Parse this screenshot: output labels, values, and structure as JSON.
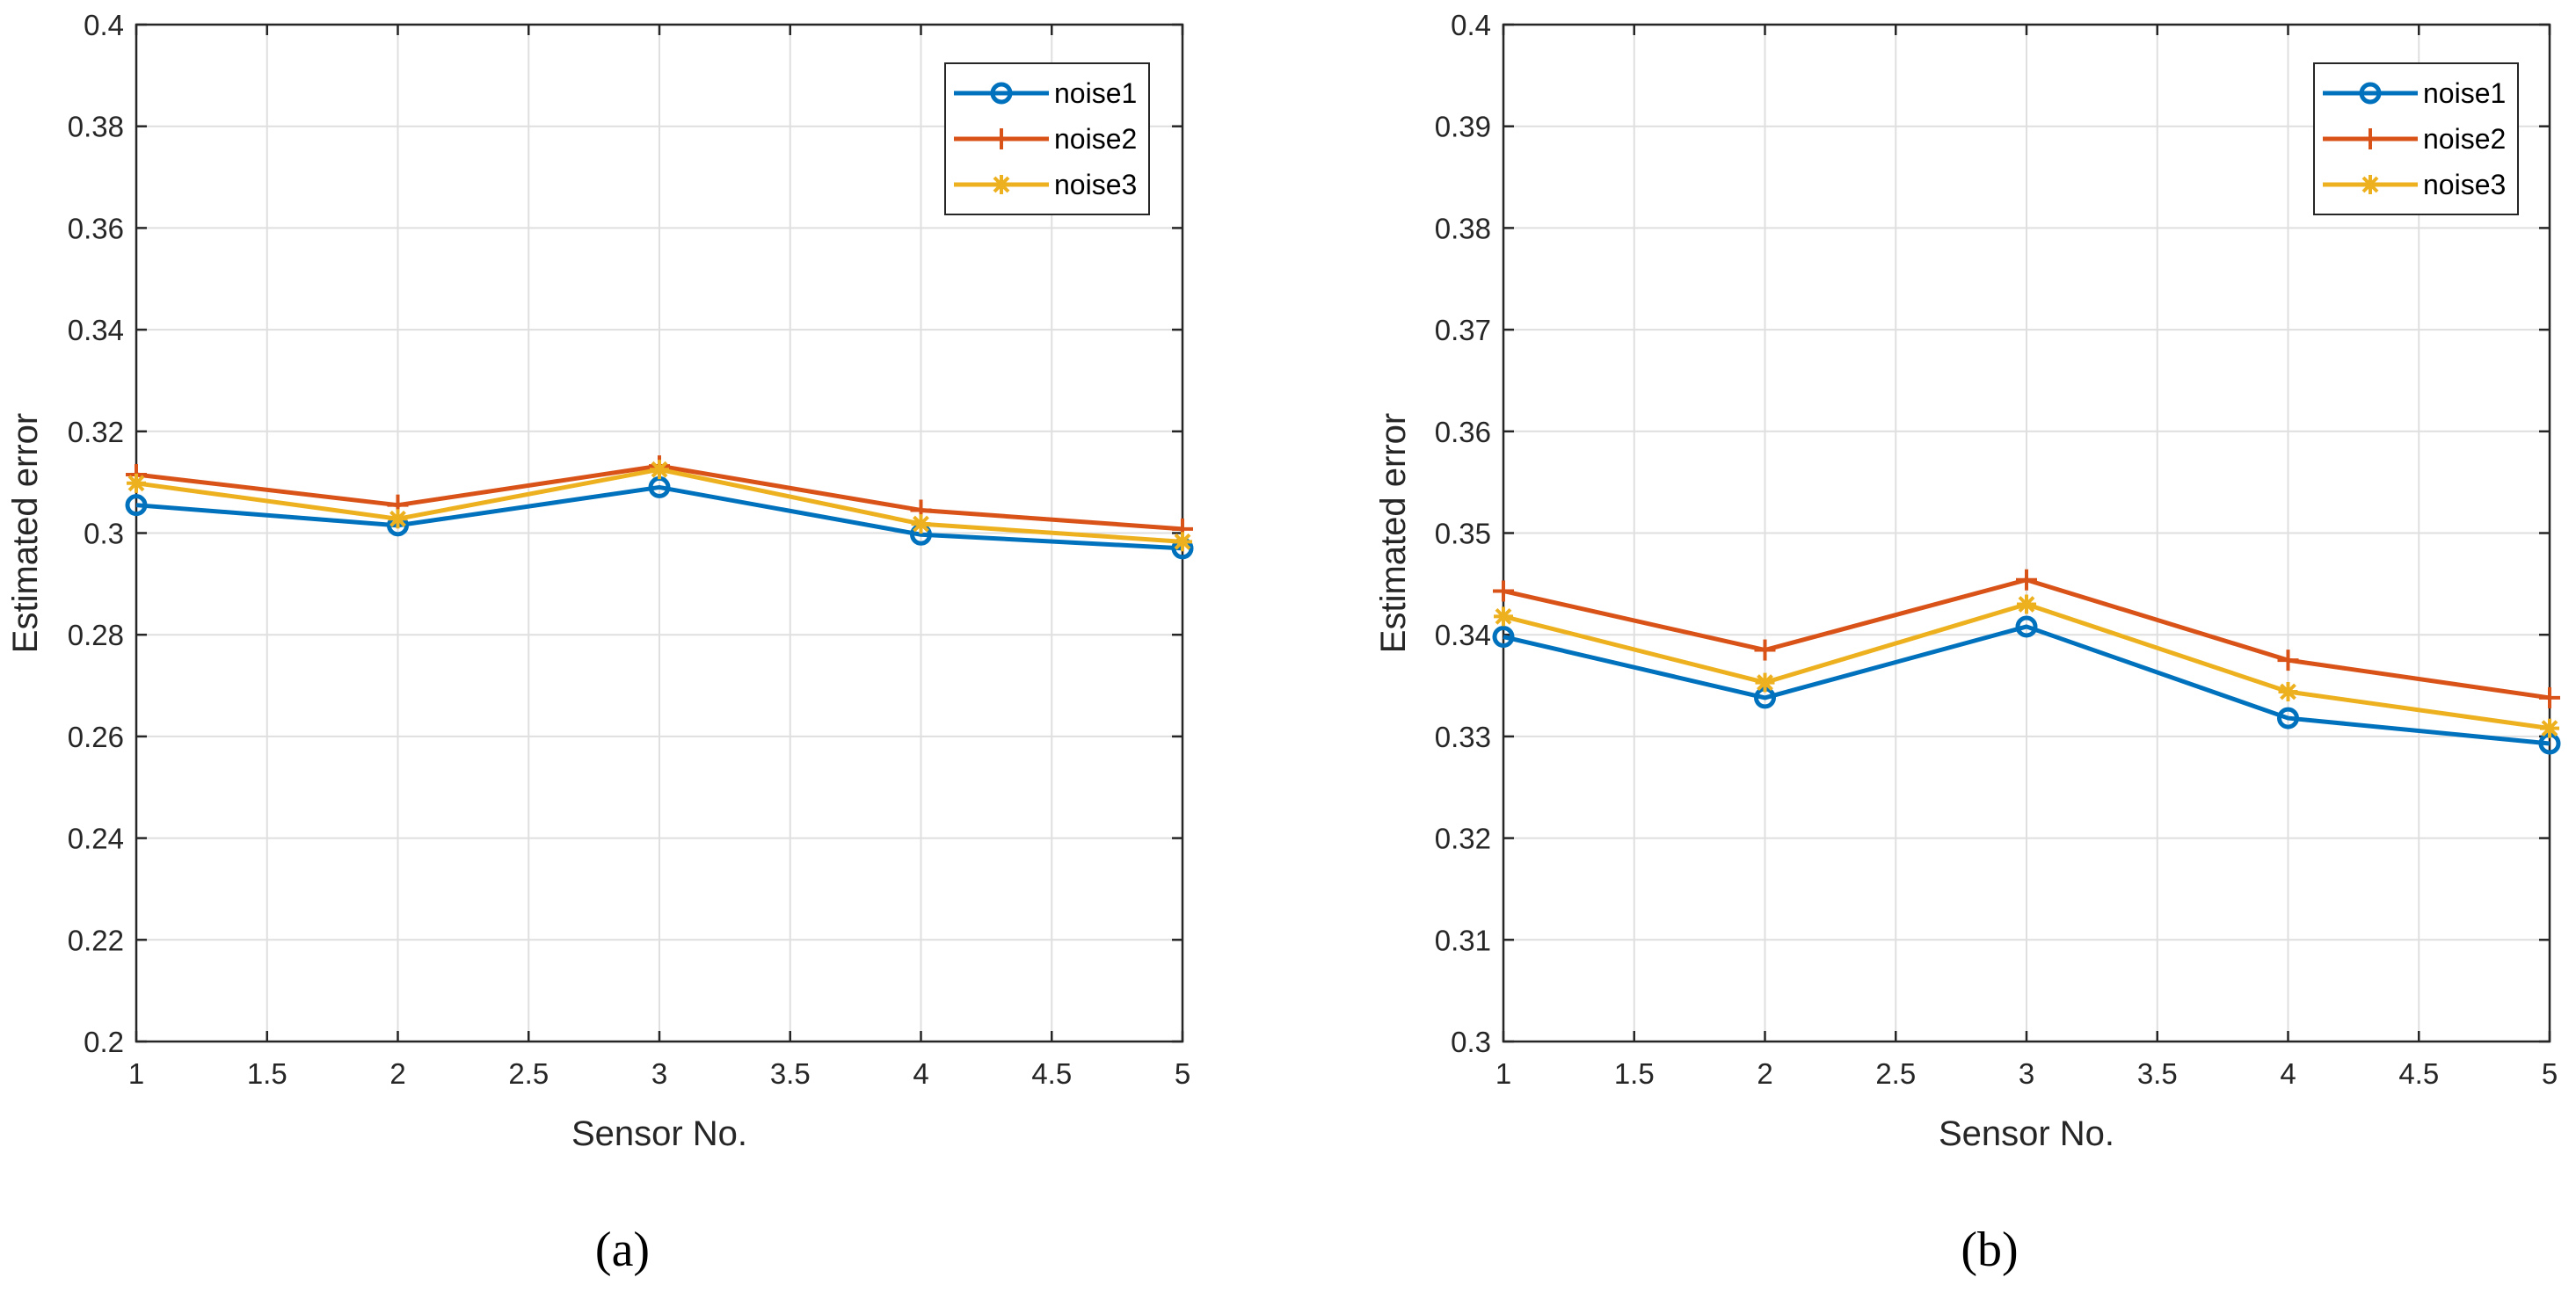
{
  "chart_data": [
    {
      "type": "line",
      "panel_label": "(a)",
      "xlabel": "Sensor No.",
      "ylabel": "Estimated error",
      "xlim": [
        1,
        5
      ],
      "ylim": [
        0.2,
        0.4
      ],
      "grid": true,
      "legend_position": "top-right",
      "xticks": [
        1,
        1.5,
        2,
        2.5,
        3,
        3.5,
        4,
        4.5,
        5
      ],
      "xtick_labels": [
        "1",
        "1.5",
        "2",
        "2.5",
        "3",
        "3.5",
        "4",
        "4.5",
        "5"
      ],
      "yticks": [
        0.2,
        0.22,
        0.24,
        0.26,
        0.28,
        0.3,
        0.32,
        0.34,
        0.36,
        0.38,
        0.4
      ],
      "ytick_labels": [
        "0.2",
        "0.22",
        "0.24",
        "0.26",
        "0.28",
        "0.3",
        "0.32",
        "0.34",
        "0.36",
        "0.38",
        "0.4"
      ],
      "x": [
        1,
        2,
        3,
        4,
        5
      ],
      "series": [
        {
          "name": "noise1",
          "marker": "circle",
          "color": "#0072BD",
          "values": [
            0.3055,
            0.3015,
            0.309,
            0.2997,
            0.297
          ]
        },
        {
          "name": "noise2",
          "marker": "plus",
          "color": "#D95319",
          "values": [
            0.3115,
            0.3055,
            0.3132,
            0.3045,
            0.3008
          ]
        },
        {
          "name": "noise3",
          "marker": "asterisk",
          "color": "#EDB120",
          "values": [
            0.3098,
            0.3028,
            0.3125,
            0.3018,
            0.2983
          ]
        }
      ]
    },
    {
      "type": "line",
      "panel_label": "(b)",
      "xlabel": "Sensor No.",
      "ylabel": "Estimated error",
      "xlim": [
        1,
        5
      ],
      "ylim": [
        0.3,
        0.4
      ],
      "grid": true,
      "legend_position": "top-right",
      "xticks": [
        1,
        1.5,
        2,
        2.5,
        3,
        3.5,
        4,
        4.5,
        5
      ],
      "xtick_labels": [
        "1",
        "1.5",
        "2",
        "2.5",
        "3",
        "3.5",
        "4",
        "4.5",
        "5"
      ],
      "yticks": [
        0.3,
        0.31,
        0.32,
        0.33,
        0.34,
        0.35,
        0.36,
        0.37,
        0.38,
        0.39,
        0.4
      ],
      "ytick_labels": [
        "0.3",
        "0.31",
        "0.32",
        "0.33",
        "0.34",
        "0.35",
        "0.36",
        "0.37",
        "0.38",
        "0.39",
        "0.4"
      ],
      "x": [
        1,
        2,
        3,
        4,
        5
      ],
      "series": [
        {
          "name": "noise1",
          "marker": "circle",
          "color": "#0072BD",
          "values": [
            0.3398,
            0.3338,
            0.3408,
            0.3318,
            0.3293
          ]
        },
        {
          "name": "noise2",
          "marker": "plus",
          "color": "#D95319",
          "values": [
            0.3443,
            0.3385,
            0.3454,
            0.3375,
            0.3338
          ]
        },
        {
          "name": "noise3",
          "marker": "asterisk",
          "color": "#EDB120",
          "values": [
            0.3418,
            0.3353,
            0.343,
            0.3344,
            0.3308
          ]
        }
      ]
    }
  ]
}
